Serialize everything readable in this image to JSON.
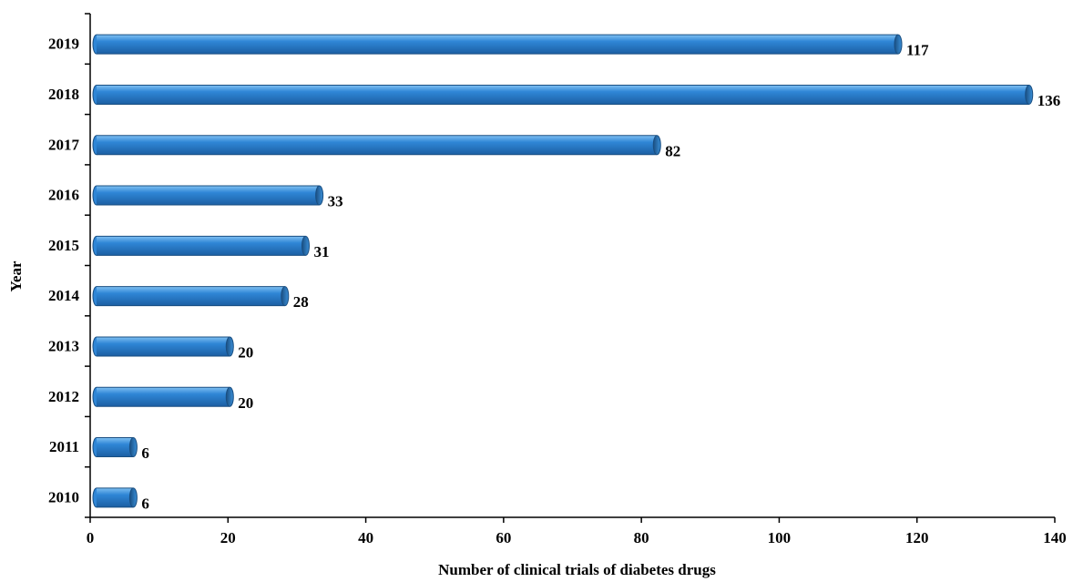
{
  "chart_data": {
    "type": "bar",
    "orientation": "horizontal",
    "title": "",
    "xlabel": "Number of clinical trials of diabetes drugs",
    "ylabel": "Year",
    "categories": [
      "2010",
      "2011",
      "2012",
      "2013",
      "2014",
      "2015",
      "2016",
      "2017",
      "2018",
      "2019"
    ],
    "values": [
      6,
      6,
      20,
      20,
      28,
      31,
      33,
      82,
      136,
      117
    ],
    "data_labels": [
      "6",
      "6",
      "20",
      "20",
      "28",
      "31",
      "33",
      "82",
      "136",
      "117"
    ],
    "xlim": [
      0,
      140
    ],
    "xticks": [
      0,
      20,
      40,
      60,
      80,
      100,
      120,
      140
    ],
    "xtick_labels": [
      "0",
      "20",
      "40",
      "60",
      "80",
      "100",
      "120",
      "140"
    ],
    "grid": false,
    "legend": "none",
    "bar_color": "#2f86d6",
    "bar_edge_color": "#1a4f82"
  }
}
